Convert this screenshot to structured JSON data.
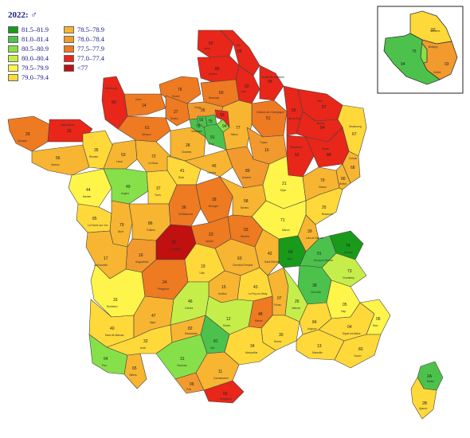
{
  "title": "2022: ♂",
  "legend": [
    {
      "label": "81.5–81.9",
      "color": "#1a9a1a"
    },
    {
      "label": "81.0–81.4",
      "color": "#4cc24c"
    },
    {
      "label": "80.5–80.9",
      "color": "#86e04a"
    },
    {
      "label": "80.0–80.4",
      "color": "#c6ee4a"
    },
    {
      "label": "79.5–79.9",
      "color": "#fff54a"
    },
    {
      "label": "79.0–79.4",
      "color": "#ffd93a"
    },
    {
      "label": "78.5–78.9",
      "color": "#f7b531"
    },
    {
      "label": "78.0–78.4",
      "color": "#f29a2e"
    },
    {
      "label": "77.5–77.9",
      "color": "#ee7a22"
    },
    {
      "label": "77.0–77.4",
      "color": "#e8261a"
    },
    {
      "label": "<77",
      "color": "#c01010"
    }
  ],
  "departments_main": [
    {
      "num": "62"
    },
    {
      "num": "59"
    },
    {
      "num": "76"
    },
    {
      "num": "80"
    },
    {
      "num": "02"
    },
    {
      "num": "08"
    },
    {
      "num": "50"
    },
    {
      "num": "14"
    },
    {
      "num": "27"
    },
    {
      "num": "60"
    },
    {
      "num": "51"
    },
    {
      "num": "55"
    },
    {
      "num": "57"
    },
    {
      "num": "67"
    },
    {
      "num": "29"
    },
    {
      "num": "22"
    },
    {
      "num": "35"
    },
    {
      "num": "56"
    },
    {
      "num": "53"
    },
    {
      "num": "61"
    },
    {
      "num": "72"
    },
    {
      "num": "28"
    },
    {
      "num": "78"
    },
    {
      "num": "95"
    },
    {
      "num": "77"
    },
    {
      "num": "10"
    },
    {
      "num": "52"
    },
    {
      "num": "54"
    },
    {
      "num": "88"
    },
    {
      "num": "68"
    },
    {
      "num": "44"
    },
    {
      "num": "49"
    },
    {
      "num": "37"
    },
    {
      "num": "41"
    },
    {
      "num": "45"
    },
    {
      "num": "89"
    },
    {
      "num": "21"
    },
    {
      "num": "70"
    },
    {
      "num": "90"
    },
    {
      "num": "25"
    },
    {
      "num": "85"
    },
    {
      "num": "79"
    },
    {
      "num": "86"
    },
    {
      "num": "36"
    },
    {
      "num": "18"
    },
    {
      "num": "58"
    },
    {
      "num": "71"
    },
    {
      "num": "39"
    },
    {
      "num": "17"
    },
    {
      "num": "16"
    },
    {
      "num": "87"
    },
    {
      "num": "23"
    },
    {
      "num": "03"
    },
    {
      "num": "63"
    },
    {
      "num": "42"
    },
    {
      "num": "69"
    },
    {
      "num": "01"
    },
    {
      "num": "74"
    },
    {
      "num": "73"
    },
    {
      "num": "38"
    },
    {
      "num": "33"
    },
    {
      "num": "24"
    },
    {
      "num": "19"
    },
    {
      "num": "15"
    },
    {
      "num": "43"
    },
    {
      "num": "07"
    },
    {
      "num": "26"
    },
    {
      "num": "05"
    },
    {
      "num": "40"
    },
    {
      "num": "47"
    },
    {
      "num": "46"
    },
    {
      "num": "12"
    },
    {
      "num": "48"
    },
    {
      "num": "30"
    },
    {
      "num": "84"
    },
    {
      "num": "04"
    },
    {
      "num": "06"
    },
    {
      "num": "64"
    },
    {
      "num": "65"
    },
    {
      "num": "32"
    },
    {
      "num": "82"
    },
    {
      "num": "81"
    },
    {
      "num": "31"
    },
    {
      "num": "09"
    },
    {
      "num": "11"
    },
    {
      "num": "66"
    },
    {
      "num": "34"
    },
    {
      "num": "13"
    },
    {
      "num": "83"
    },
    {
      "num": "2A"
    },
    {
      "num": "2B"
    },
    {
      "num": "75"
    },
    {
      "num": "91"
    },
    {
      "num": "94"
    },
    {
      "num": "93"
    },
    {
      "num": "92"
    }
  ],
  "departments_inset": [
    {
      "num": "92"
    },
    {
      "num": "93"
    },
    {
      "num": "75"
    },
    {
      "num": "94"
    }
  ],
  "city_names": [
    "Cherbourg",
    "Caen",
    "Rouen",
    "Beauvais",
    "Amiens",
    "Arras",
    "Lille",
    "Laon",
    "Charleville-Mézières",
    "Châlons-en-Champagne",
    "Metz",
    "Strasbourg",
    "Bar-le-Duc",
    "Nancy",
    "Troyes",
    "Chaumont",
    "Colmar",
    "Épinal",
    "Quimper",
    "Saint-Brieuc",
    "Vannes",
    "Rennes",
    "Laval",
    "Alençon",
    "Le Mans",
    "Chartres",
    "Évreux",
    "Versailles",
    "Melun",
    "Nantes",
    "Angers",
    "Tours",
    "Blois",
    "Orléans",
    "Auxerre",
    "Dijon",
    "Vesoul",
    "Besançon",
    "Belfort",
    "La Roche-sur-Yon",
    "Niort",
    "Poitiers",
    "Châteauroux",
    "Bourges",
    "Nevers",
    "Mâcon",
    "Lons-le-Saunier",
    "La Rochelle",
    "Angoulême",
    "Limoges",
    "Guéret",
    "Moulins",
    "Clermont-Ferrand",
    "Saint-Étienne",
    "Lyon",
    "Bourg-en-Bresse",
    "Annecy",
    "Chambéry",
    "Grenoble",
    "Bordeaux",
    "Périgueux",
    "Tulle",
    "Aurillac",
    "Le Puy-en-Velay",
    "Privas",
    "Valence",
    "Gap",
    "Mont-de-Marsan",
    "Agen",
    "Cahors",
    "Rodez",
    "Mende",
    "Nîmes",
    "Avignon",
    "Digne-les-Bains",
    "Nice",
    "Pau",
    "Tarbes",
    "Auch",
    "Montauban",
    "Albi",
    "Toulouse",
    "Foix",
    "Carcassonne",
    "Perpignan",
    "Montpellier",
    "Marseille",
    "Toulon",
    "Ajaccio",
    "Bastia",
    "Bobigny",
    "Créteil",
    "Nanterre",
    "Évry",
    "Cergy"
  ]
}
